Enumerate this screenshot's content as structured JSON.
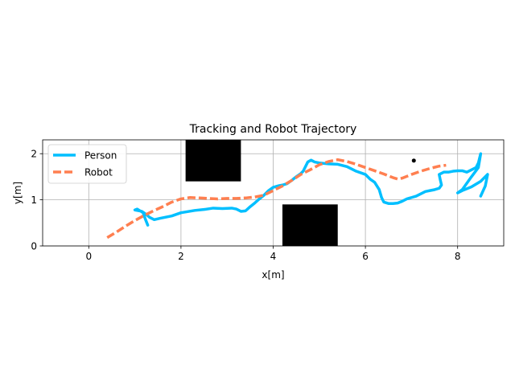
{
  "chart_data": {
    "type": "line",
    "title": "Tracking and Robot Trajectory",
    "xlabel": "x[m]",
    "ylabel": "y[m]",
    "xlim": [
      -1.0,
      9.0
    ],
    "ylim": [
      0.0,
      2.3
    ],
    "xticks": [
      0,
      2,
      4,
      6,
      8
    ],
    "yticks": [
      0,
      1,
      2
    ],
    "grid": true,
    "aspect": "equal",
    "legend_location": "upper-left",
    "obstacles": [
      {
        "name": "obstacle-upper",
        "x0": 2.1,
        "x1": 3.3,
        "y0": 1.4,
        "y1": 2.3,
        "color": "#000000"
      },
      {
        "name": "obstacle-lower",
        "x0": 4.2,
        "x1": 5.4,
        "y0": 0.0,
        "y1": 0.9,
        "color": "#000000"
      }
    ],
    "markers": [
      {
        "name": "goal-point",
        "x": 7.05,
        "y": 1.85,
        "color": "#000000"
      }
    ],
    "series": [
      {
        "name": "Person",
        "color": "#00bfff",
        "style": "solid",
        "points": [
          [
            1.28,
            0.45
          ],
          [
            1.22,
            0.6
          ],
          [
            1.18,
            0.72
          ],
          [
            1.05,
            0.8
          ],
          [
            1.0,
            0.78
          ],
          [
            1.15,
            0.75
          ],
          [
            1.25,
            0.68
          ],
          [
            1.32,
            0.62
          ],
          [
            1.42,
            0.57
          ],
          [
            1.55,
            0.6
          ],
          [
            1.8,
            0.65
          ],
          [
            2.0,
            0.72
          ],
          [
            2.3,
            0.77
          ],
          [
            2.5,
            0.79
          ],
          [
            2.7,
            0.82
          ],
          [
            2.9,
            0.81
          ],
          [
            3.1,
            0.82
          ],
          [
            3.2,
            0.8
          ],
          [
            3.3,
            0.75
          ],
          [
            3.4,
            0.76
          ],
          [
            3.5,
            0.85
          ],
          [
            3.6,
            0.93
          ],
          [
            3.7,
            1.02
          ],
          [
            3.8,
            1.1
          ],
          [
            3.9,
            1.2
          ],
          [
            4.0,
            1.27
          ],
          [
            4.1,
            1.3
          ],
          [
            4.2,
            1.32
          ],
          [
            4.3,
            1.35
          ],
          [
            4.4,
            1.42
          ],
          [
            4.5,
            1.5
          ],
          [
            4.6,
            1.57
          ],
          [
            4.65,
            1.62
          ],
          [
            4.7,
            1.72
          ],
          [
            4.75,
            1.82
          ],
          [
            4.82,
            1.86
          ],
          [
            4.9,
            1.82
          ],
          [
            5.0,
            1.8
          ],
          [
            5.2,
            1.78
          ],
          [
            5.4,
            1.77
          ],
          [
            5.6,
            1.72
          ],
          [
            5.8,
            1.62
          ],
          [
            6.0,
            1.55
          ],
          [
            6.1,
            1.45
          ],
          [
            6.2,
            1.38
          ],
          [
            6.3,
            1.22
          ],
          [
            6.35,
            1.05
          ],
          [
            6.4,
            0.95
          ],
          [
            6.5,
            0.92
          ],
          [
            6.6,
            0.92
          ],
          [
            6.7,
            0.93
          ],
          [
            6.8,
            0.97
          ],
          [
            6.9,
            1.02
          ],
          [
            7.0,
            1.05
          ],
          [
            7.1,
            1.08
          ],
          [
            7.2,
            1.13
          ],
          [
            7.3,
            1.18
          ],
          [
            7.4,
            1.2
          ],
          [
            7.5,
            1.22
          ],
          [
            7.6,
            1.25
          ],
          [
            7.65,
            1.32
          ],
          [
            7.62,
            1.45
          ],
          [
            7.6,
            1.55
          ],
          [
            7.7,
            1.6
          ],
          [
            7.8,
            1.6
          ],
          [
            7.9,
            1.62
          ],
          [
            8.0,
            1.63
          ],
          [
            8.1,
            1.63
          ],
          [
            8.2,
            1.6
          ],
          [
            8.3,
            1.65
          ],
          [
            8.4,
            1.7
          ],
          [
            8.45,
            1.8
          ],
          [
            8.5,
            2.0
          ],
          [
            8.45,
            1.7
          ],
          [
            8.3,
            1.5
          ],
          [
            8.1,
            1.22
          ],
          [
            8.0,
            1.15
          ],
          [
            8.1,
            1.2
          ],
          [
            8.3,
            1.28
          ],
          [
            8.5,
            1.4
          ],
          [
            8.65,
            1.55
          ],
          [
            8.6,
            1.3
          ],
          [
            8.5,
            1.08
          ]
        ]
      },
      {
        "name": "Robot",
        "color": "#ff7f50",
        "style": "dashed",
        "points": [
          [
            0.4,
            0.18
          ],
          [
            0.6,
            0.3
          ],
          [
            0.8,
            0.43
          ],
          [
            1.0,
            0.55
          ],
          [
            1.2,
            0.66
          ],
          [
            1.4,
            0.76
          ],
          [
            1.6,
            0.85
          ],
          [
            1.8,
            0.95
          ],
          [
            2.0,
            1.02
          ],
          [
            2.2,
            1.05
          ],
          [
            2.4,
            1.04
          ],
          [
            2.6,
            1.03
          ],
          [
            2.8,
            1.02
          ],
          [
            3.0,
            1.03
          ],
          [
            3.2,
            1.03
          ],
          [
            3.4,
            1.04
          ],
          [
            3.6,
            1.06
          ],
          [
            3.8,
            1.1
          ],
          [
            4.0,
            1.2
          ],
          [
            4.2,
            1.3
          ],
          [
            4.4,
            1.42
          ],
          [
            4.6,
            1.55
          ],
          [
            4.8,
            1.65
          ],
          [
            5.0,
            1.76
          ],
          [
            5.2,
            1.83
          ],
          [
            5.4,
            1.87
          ],
          [
            5.6,
            1.83
          ],
          [
            5.8,
            1.77
          ],
          [
            6.0,
            1.7
          ],
          [
            6.2,
            1.63
          ],
          [
            6.4,
            1.56
          ],
          [
            6.6,
            1.48
          ],
          [
            6.7,
            1.45
          ],
          [
            6.8,
            1.47
          ],
          [
            7.0,
            1.55
          ],
          [
            7.2,
            1.62
          ],
          [
            7.4,
            1.68
          ],
          [
            7.6,
            1.73
          ],
          [
            7.75,
            1.75
          ]
        ]
      }
    ]
  }
}
